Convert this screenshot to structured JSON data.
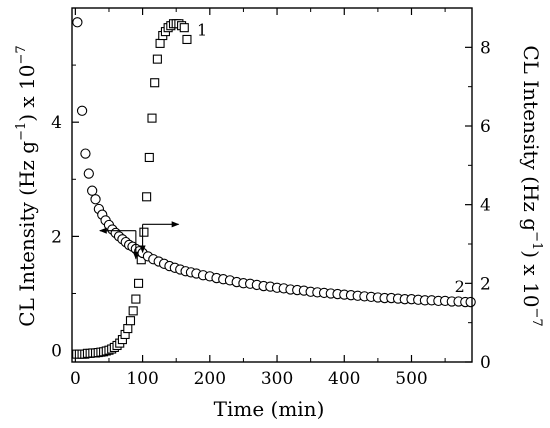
{
  "chart_data": {
    "type": "scatter",
    "x_axis": {
      "label": "Time (min)",
      "range": [
        -5,
        590
      ],
      "ticks": [
        0,
        100,
        200,
        300,
        400,
        500
      ]
    },
    "y_axis_left": {
      "label_parts": [
        "CL Intensity (Hz g",
        "−1",
        ") x 10",
        "−7"
      ],
      "range": [
        -0.2,
        6.0
      ],
      "ticks": [
        0,
        2,
        4
      ]
    },
    "y_axis_right": {
      "label_parts": [
        "CL Intensity (Hz g",
        "−1",
        ") x 10",
        "−7"
      ],
      "range": [
        0,
        9.0
      ],
      "ticks": [
        0,
        2,
        4,
        6,
        8
      ]
    },
    "series": [
      {
        "name": "1",
        "marker": "square",
        "axis": "right",
        "x": [
          2,
          6,
          10,
          14,
          18,
          22,
          26,
          30,
          34,
          38,
          42,
          46,
          50,
          54,
          58,
          62,
          66,
          70,
          74,
          78,
          82,
          86,
          90,
          94,
          98,
          102,
          106,
          110,
          114,
          118,
          122,
          126,
          130,
          134,
          138,
          142,
          146,
          150,
          154,
          158,
          162,
          166
        ],
        "y": [
          0.2,
          0.2,
          0.2,
          0.2,
          0.22,
          0.22,
          0.23,
          0.23,
          0.24,
          0.25,
          0.26,
          0.28,
          0.3,
          0.33,
          0.37,
          0.42,
          0.48,
          0.57,
          0.7,
          0.85,
          1.05,
          1.3,
          1.6,
          2.0,
          2.6,
          3.3,
          4.2,
          5.2,
          6.2,
          7.1,
          7.7,
          8.1,
          8.3,
          8.4,
          8.5,
          8.55,
          8.6,
          8.6,
          8.6,
          8.55,
          8.5,
          8.2
        ]
      },
      {
        "name": "2",
        "marker": "circle",
        "axis": "left",
        "x": [
          3,
          10,
          15,
          20,
          25,
          30,
          35,
          40,
          45,
          50,
          55,
          60,
          65,
          70,
          75,
          80,
          85,
          90,
          95,
          100,
          108,
          116,
          124,
          132,
          140,
          148,
          156,
          164,
          172,
          180,
          190,
          200,
          210,
          220,
          230,
          240,
          250,
          260,
          270,
          280,
          290,
          300,
          310,
          320,
          330,
          340,
          350,
          360,
          370,
          380,
          390,
          400,
          410,
          420,
          430,
          440,
          450,
          460,
          470,
          480,
          490,
          500,
          510,
          520,
          530,
          540,
          550,
          560,
          570,
          580,
          588
        ],
        "y": [
          5.75,
          4.2,
          3.45,
          3.1,
          2.8,
          2.65,
          2.48,
          2.38,
          2.28,
          2.2,
          2.12,
          2.06,
          2.0,
          1.95,
          1.9,
          1.85,
          1.82,
          1.78,
          1.74,
          1.71,
          1.65,
          1.6,
          1.56,
          1.52,
          1.48,
          1.45,
          1.42,
          1.39,
          1.37,
          1.35,
          1.32,
          1.3,
          1.27,
          1.25,
          1.23,
          1.2,
          1.18,
          1.17,
          1.15,
          1.13,
          1.12,
          1.1,
          1.09,
          1.07,
          1.06,
          1.05,
          1.03,
          1.02,
          1.01,
          1.0,
          0.99,
          0.98,
          0.97,
          0.96,
          0.95,
          0.94,
          0.93,
          0.92,
          0.92,
          0.91,
          0.9,
          0.9,
          0.89,
          0.88,
          0.88,
          0.87,
          0.87,
          0.86,
          0.86,
          0.85,
          0.85
        ]
      }
    ],
    "annotations": [
      {
        "type": "axis-pointer",
        "series": "2",
        "at": [
          90,
          2.1
        ],
        "direction": "left"
      },
      {
        "type": "axis-pointer",
        "series": "1",
        "at": [
          100,
          3.5
        ],
        "direction": "right"
      }
    ]
  }
}
